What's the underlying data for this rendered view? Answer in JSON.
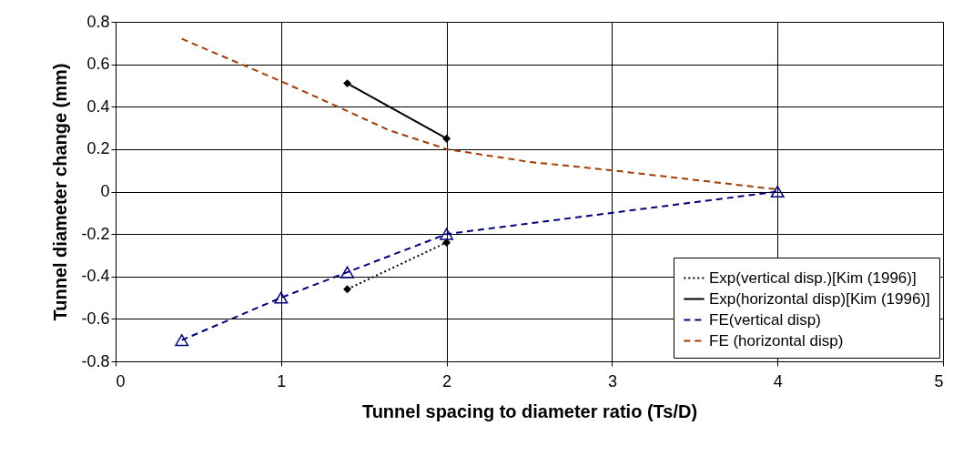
{
  "chart_data": {
    "type": "line",
    "xlabel": "Tunnel spacing to diameter ratio (Ts/D)",
    "ylabel": "Tunnel diameter change (mm)",
    "xlim": [
      0,
      5
    ],
    "xticks": [
      0,
      1,
      2,
      3,
      4,
      5
    ],
    "ylim": [
      -0.8,
      0.8
    ],
    "yticks": [
      -0.8,
      -0.6,
      -0.4,
      -0.2,
      0,
      0.2,
      0.4,
      0.6,
      0.8
    ],
    "grid": true,
    "legend": "bottom right",
    "series": [
      {
        "name": "Exp(vertical disp.)[Kim (1996)]",
        "color": "#000000",
        "marker": "diamond",
        "line_style": "dotted",
        "x": [
          1.4,
          2
        ],
        "values": [
          -0.46,
          -0.24
        ]
      },
      {
        "name": "Exp(horizontal disp)[Kim (1996)]",
        "color": "#000000",
        "marker": "diamond",
        "line_style": "solid",
        "x": [
          1.4,
          2
        ],
        "values": [
          0.51,
          0.25
        ]
      },
      {
        "name": "FE(vertical disp)",
        "color": "#000080",
        "marker": "triangle",
        "line_style": "dashed",
        "x": [
          0.4,
          1,
          1.4,
          2,
          4
        ],
        "values": [
          -0.7,
          -0.5,
          -0.38,
          -0.2,
          0
        ]
      },
      {
        "name": "FE (horizontal disp)",
        "color": "#a33c00",
        "marker": "none",
        "line_style": "dashed",
        "x": [
          0.4,
          1,
          1.4,
          1.65,
          2,
          2.5,
          3,
          4
        ],
        "values": [
          0.72,
          0.52,
          0.38,
          0.29,
          0.2,
          0.14,
          0.1,
          0.01
        ]
      }
    ]
  }
}
